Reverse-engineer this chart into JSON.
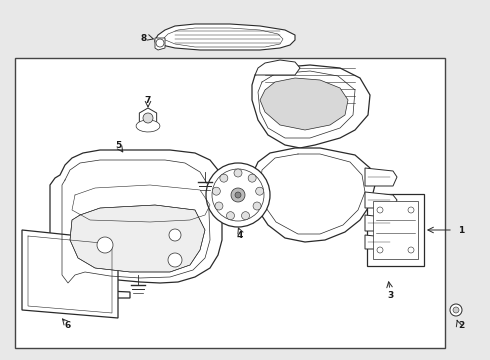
{
  "bg_color": "#e8e8e8",
  "box_bg": "#ffffff",
  "line_color": "#2a2a2a",
  "text_color": "#1a1a1a",
  "box_border": "#444444"
}
